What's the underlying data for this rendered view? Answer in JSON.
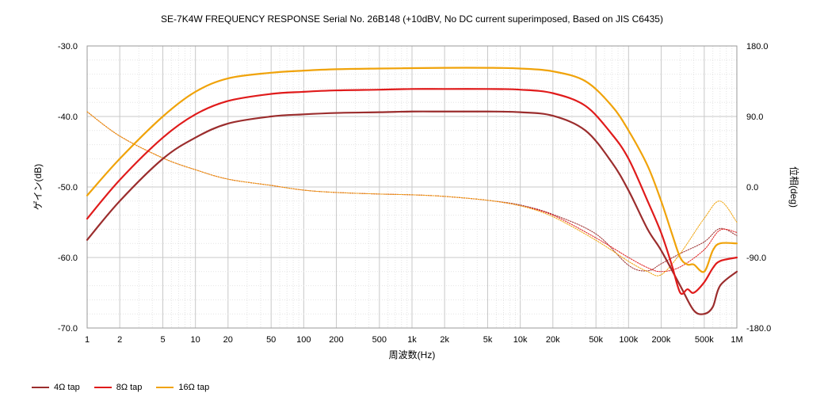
{
  "chart_data": {
    "type": "line",
    "title": "SE-7K4W FREQUENCY RESPONSE Serial No. 26B148 (+10dBV,  No DC current superimposed,  Based on JIS C6435)",
    "xlabel": "周波数(Hz)",
    "ylabel_left": "ゲイン(dB)",
    "ylabel_right": "位相(deg)",
    "x_scale": "log",
    "xlim": [
      1,
      1000000
    ],
    "ylim_left": [
      -70,
      -30
    ],
    "ylim_right": [
      -180,
      180
    ],
    "x_ticks": [
      1,
      2,
      5,
      10,
      20,
      50,
      100,
      200,
      500,
      1000,
      2000,
      5000,
      10000,
      20000,
      50000,
      100000,
      200000,
      500000,
      1000000
    ],
    "x_tick_labels": [
      "1",
      "2",
      "5",
      "10",
      "20",
      "50",
      "100",
      "200",
      "500",
      "1k",
      "2k",
      "5k",
      "10k",
      "20k",
      "50k",
      "100k",
      "200k",
      "500k",
      "1M"
    ],
    "y_ticks_left": [
      -30,
      -40,
      -50,
      -60,
      -70
    ],
    "y_tick_labels_left": [
      "-30.0",
      "-40.0",
      "-50.0",
      "-60.0",
      "-70.0"
    ],
    "y_ticks_right": [
      180,
      90,
      0,
      -90,
      -180
    ],
    "y_tick_labels_right": [
      "180.0",
      "90.0",
      "0.0",
      "-90.0",
      "-180.0"
    ],
    "grid": true,
    "legend_position": "bottom-left",
    "series": [
      {
        "name": "4Ω tap",
        "color": "#9b2d2d",
        "axis": "left",
        "x": [
          1,
          2,
          5,
          10,
          20,
          50,
          100,
          200,
          500,
          1000,
          2000,
          5000,
          10000,
          20000,
          40000,
          70000,
          100000,
          150000,
          200000,
          300000,
          400000,
          500000,
          600000,
          700000,
          1000000
        ],
        "values": [
          -57.5,
          -52,
          -46,
          -43,
          -41,
          -40,
          -39.7,
          -39.5,
          -39.4,
          -39.3,
          -39.3,
          -39.3,
          -39.4,
          -39.9,
          -42,
          -46.5,
          -50.5,
          -56,
          -59,
          -64,
          -67.5,
          -68,
          -67,
          -64,
          -62
        ]
      },
      {
        "name": "8Ω tap",
        "color": "#e01b1b",
        "axis": "left",
        "x": [
          1,
          2,
          5,
          10,
          20,
          50,
          100,
          200,
          500,
          1000,
          2000,
          5000,
          10000,
          20000,
          40000,
          70000,
          100000,
          150000,
          200000,
          250000,
          300000,
          350000,
          400000,
          500000,
          600000,
          700000,
          1000000
        ],
        "values": [
          -54.5,
          -49,
          -43,
          -39.7,
          -37.8,
          -36.8,
          -36.5,
          -36.3,
          -36.2,
          -36.1,
          -36.1,
          -36.1,
          -36.2,
          -36.7,
          -38.5,
          -42.5,
          -46,
          -52,
          -56.5,
          -61,
          -65,
          -64.5,
          -65,
          -63.5,
          -61.5,
          -60.5,
          -60
        ]
      },
      {
        "name": "16Ω tap",
        "color": "#f0a30a",
        "axis": "left",
        "x": [
          1,
          2,
          5,
          10,
          20,
          50,
          100,
          200,
          500,
          1000,
          2000,
          5000,
          10000,
          20000,
          40000,
          70000,
          100000,
          150000,
          200000,
          250000,
          300000,
          350000,
          400000,
          500000,
          600000,
          700000,
          1000000
        ],
        "values": [
          -51.2,
          -46,
          -40,
          -36.5,
          -34.6,
          -33.8,
          -33.5,
          -33.3,
          -33.2,
          -33.15,
          -33.1,
          -33.1,
          -33.2,
          -33.6,
          -35,
          -38.5,
          -42,
          -47,
          -52,
          -56.5,
          -60,
          -61,
          -61,
          -62,
          -59,
          -58,
          -58
        ]
      },
      {
        "name": "4Ω phase",
        "color": "#9b2d2d",
        "axis": "right",
        "x": [
          1,
          2,
          5,
          10,
          20,
          50,
          100,
          200,
          500,
          1000,
          2000,
          5000,
          10000,
          20000,
          50000,
          100000,
          150000,
          200000,
          300000,
          500000,
          700000,
          1000000
        ],
        "values": [
          96,
          65,
          37,
          22,
          10,
          2,
          -4,
          -7,
          -9,
          -10,
          -12,
          -17,
          -23,
          -35,
          -60,
          -100,
          -107,
          -98,
          -85,
          -70,
          -53,
          -62
        ]
      },
      {
        "name": "8Ω phase",
        "color": "#e01b1b",
        "axis": "right",
        "x": [
          1,
          2,
          5,
          10,
          20,
          50,
          100,
          200,
          500,
          1000,
          2000,
          5000,
          10000,
          20000,
          50000,
          100000,
          150000,
          200000,
          300000,
          500000,
          700000,
          1000000
        ],
        "values": [
          96,
          65,
          37,
          22,
          10,
          2,
          -4,
          -7,
          -9,
          -10,
          -12,
          -17,
          -24,
          -36,
          -65,
          -90,
          -103,
          -108,
          -102,
          -80,
          -55,
          -58
        ]
      },
      {
        "name": "16Ω phase",
        "color": "#f0a30a",
        "axis": "right",
        "x": [
          1,
          2,
          5,
          10,
          20,
          50,
          100,
          200,
          500,
          1000,
          2000,
          5000,
          10000,
          20000,
          50000,
          100000,
          150000,
          200000,
          300000,
          500000,
          700000,
          1000000
        ],
        "values": [
          96,
          65,
          37,
          22,
          10,
          2,
          -4,
          -7,
          -9,
          -10,
          -12,
          -17,
          -24,
          -38,
          -68,
          -95,
          -108,
          -112,
          -85,
          -40,
          -18,
          -45
        ]
      }
    ]
  },
  "legend": {
    "items": [
      {
        "label": "4Ω tap",
        "color": "#9b2d2d"
      },
      {
        "label": "8Ω tap",
        "color": "#e01b1b"
      },
      {
        "label": "16Ω tap",
        "color": "#f0a30a"
      }
    ]
  }
}
